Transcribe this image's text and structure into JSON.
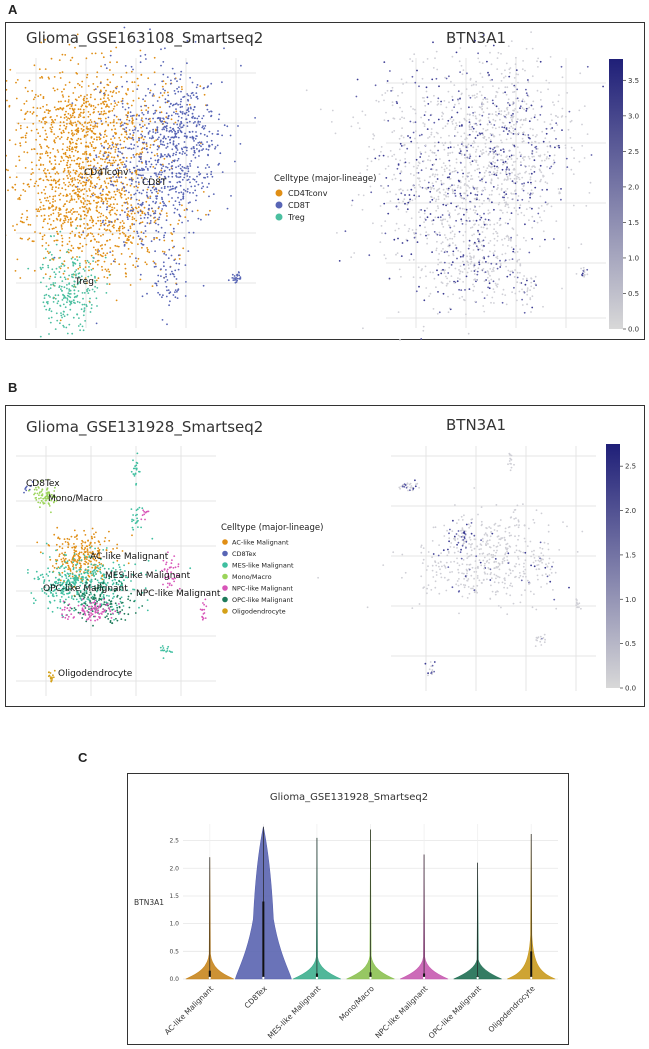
{
  "panels": {
    "a": {
      "letter": "A",
      "umap_title": "Glioma_GSE163108_Smartseq2",
      "expr_title": "BTN3A1",
      "legend_title": "Celltype (major-lineage)",
      "legend": [
        {
          "name": "CD4Tconv",
          "color": "#E08E15"
        },
        {
          "name": "CD8T",
          "color": "#5865B5"
        },
        {
          "name": "Treg",
          "color": "#4BBFA0"
        }
      ],
      "cluster_labels": [
        "CD4Tconv",
        "CD8T",
        "Treg"
      ],
      "colorbar": {
        "min": 0.0,
        "max": 3.5,
        "ticks": [
          "3.5",
          "3.0",
          "2.5",
          "2.0",
          "1.5",
          "1.0",
          "0.5",
          "0.0"
        ],
        "high_color": "#1f1f78",
        "low_color": "#d8d8d8"
      }
    },
    "b": {
      "letter": "B",
      "umap_title": "Glioma_GSE131928_Smartseq2",
      "expr_title": "BTN3A1",
      "legend_title": "Celltype (major-lineage)",
      "legend": [
        {
          "name": "AC-like Malignant",
          "color": "#E08E15"
        },
        {
          "name": "CD8Tex",
          "color": "#5865B5"
        },
        {
          "name": "MES-like Malignant",
          "color": "#3FBFA0"
        },
        {
          "name": "Mono/Macro",
          "color": "#9BD45A"
        },
        {
          "name": "NPC-like Malignant",
          "color": "#D855B8"
        },
        {
          "name": "OPC-like Malignant",
          "color": "#1E7A5A"
        },
        {
          "name": "Oligodendrocyte",
          "color": "#D4A017"
        }
      ],
      "cluster_labels": [
        "CD8Tex",
        "Mono/Macro",
        "AC-like Malignant",
        "MES-like Malignant",
        "OPC-like Malignant",
        "NPC-like Malignant",
        "Oligodendrocyte"
      ],
      "colorbar": {
        "min": 0.0,
        "max": 2.5,
        "ticks": [
          "2.5",
          "2.0",
          "1.5",
          "1.0",
          "0.5",
          "0.0"
        ],
        "high_color": "#1f1f78",
        "low_color": "#d8d8d8"
      }
    },
    "c": {
      "letter": "C",
      "title": "Glioma_GSE131928_Smartseq2",
      "ylabel": "BTN3A1"
    }
  },
  "chart_data": {
    "type": "violin",
    "title": "Glioma_GSE131928_Smartseq2",
    "ylabel": "BTN3A1",
    "ylim": [
      0,
      2.8
    ],
    "yticks": [
      "0.0",
      "0.5",
      "1.0",
      "1.5",
      "2.0",
      "2.5"
    ],
    "categories": [
      "AC-like Malignant",
      "CD8Tex",
      "MES-like Malignant",
      "Mono/Macro",
      "NPC-like Malignant",
      "OPC-like Malignant",
      "Oligodendrocyte"
    ],
    "colors": [
      "#C8861E",
      "#5A64B0",
      "#3EAF8E",
      "#8CC152",
      "#C65BB0",
      "#1E6E52",
      "#C99A1E"
    ],
    "max_values": [
      2.2,
      2.75,
      2.55,
      2.7,
      2.25,
      2.1,
      2.62
    ],
    "q3_values": [
      0.15,
      1.4,
      0.1,
      0.12,
      0.1,
      0.05,
      0.5
    ]
  }
}
